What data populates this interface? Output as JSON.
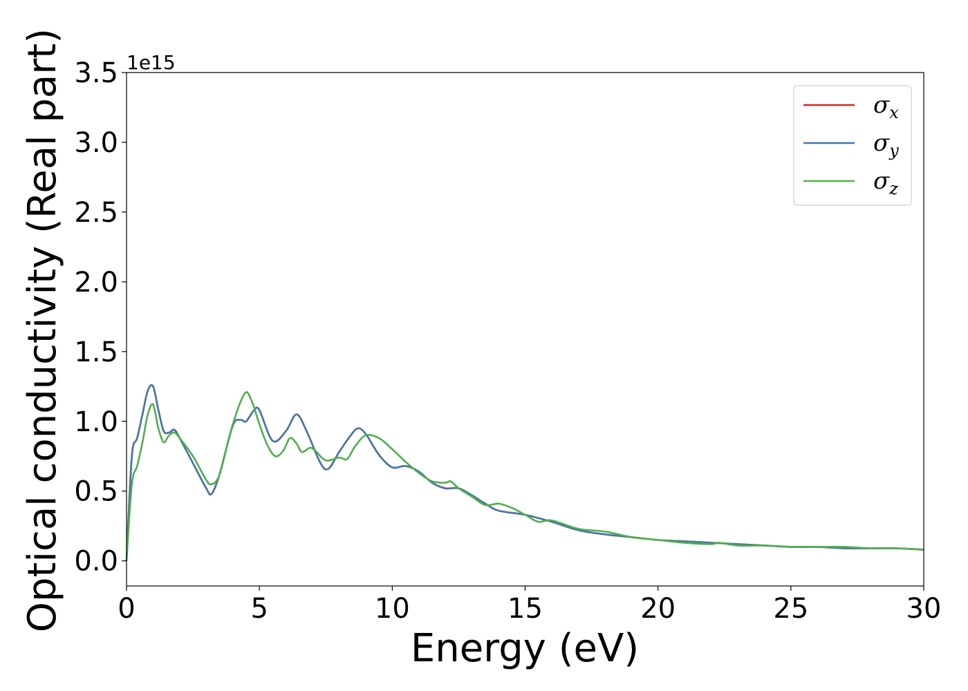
{
  "chart_data": {
    "type": "line",
    "title": "",
    "xlabel": "Energy (eV)",
    "ylabel": "Optical conductivity (Real part)",
    "y_offset_label": "1e15",
    "xlim": [
      0,
      30
    ],
    "ylim": [
      -0.18,
      3.5
    ],
    "xticks": [
      "0",
      "5",
      "10",
      "15",
      "20",
      "25",
      "30"
    ],
    "yticks": [
      "0.0",
      "0.5",
      "1.0",
      "1.5",
      "2.0",
      "2.5",
      "3.0",
      "3.5"
    ],
    "grid": false,
    "legend_position": "top-right",
    "colors": {
      "x": "#d62728",
      "y": "#4477aa",
      "z": "#4daf4a"
    },
    "legend": [
      {
        "base": "σ",
        "sub": "x"
      },
      {
        "base": "σ",
        "sub": "y"
      },
      {
        "base": "σ",
        "sub": "z"
      }
    ],
    "series": [
      {
        "name": "σx",
        "x": [
          0,
          0.2,
          0.4,
          0.6,
          0.8,
          1.0,
          1.2,
          1.4,
          1.6,
          1.8,
          2.0,
          2.5,
          3.0,
          3.2,
          3.5,
          4.0,
          4.3,
          4.5,
          4.8,
          5.0,
          5.5,
          6.0,
          6.4,
          6.8,
          7.3,
          7.6,
          8.0,
          8.4,
          8.7,
          9.0,
          9.5,
          10.0,
          10.5,
          11.0,
          11.5,
          12.0,
          12.5,
          13.0,
          13.5,
          14.0,
          15.0,
          16.0,
          17.0,
          18.0,
          19.0,
          20.0,
          21.0,
          22.0,
          23.0,
          24.0,
          25.0,
          26.0,
          27.0,
          28.0,
          29.0,
          30.0
        ],
        "y": [
          0.0,
          0.75,
          0.88,
          1.05,
          1.22,
          1.25,
          1.08,
          0.93,
          0.92,
          0.94,
          0.88,
          0.7,
          0.52,
          0.48,
          0.62,
          0.97,
          1.01,
          1.0,
          1.08,
          1.08,
          0.86,
          0.93,
          1.05,
          0.92,
          0.7,
          0.66,
          0.78,
          0.89,
          0.95,
          0.91,
          0.76,
          0.67,
          0.68,
          0.64,
          0.56,
          0.52,
          0.52,
          0.47,
          0.41,
          0.36,
          0.33,
          0.28,
          0.22,
          0.19,
          0.17,
          0.15,
          0.14,
          0.13,
          0.12,
          0.11,
          0.1,
          0.1,
          0.09,
          0.09,
          0.09,
          0.08
        ]
      },
      {
        "name": "σy",
        "x": [
          0,
          0.2,
          0.4,
          0.6,
          0.8,
          1.0,
          1.2,
          1.4,
          1.6,
          1.8,
          2.0,
          2.5,
          3.0,
          3.2,
          3.5,
          4.0,
          4.3,
          4.5,
          4.8,
          5.0,
          5.5,
          6.0,
          6.4,
          6.8,
          7.3,
          7.6,
          8.0,
          8.4,
          8.7,
          9.0,
          9.5,
          10.0,
          10.5,
          11.0,
          11.5,
          12.0,
          12.5,
          13.0,
          13.5,
          14.0,
          15.0,
          16.0,
          17.0,
          18.0,
          19.0,
          20.0,
          21.0,
          22.0,
          23.0,
          24.0,
          25.0,
          26.0,
          27.0,
          28.0,
          29.0,
          30.0
        ],
        "y": [
          0.0,
          0.75,
          0.88,
          1.05,
          1.22,
          1.25,
          1.08,
          0.93,
          0.92,
          0.94,
          0.88,
          0.7,
          0.52,
          0.48,
          0.62,
          0.97,
          1.01,
          1.0,
          1.08,
          1.08,
          0.86,
          0.93,
          1.05,
          0.92,
          0.7,
          0.66,
          0.78,
          0.89,
          0.95,
          0.91,
          0.76,
          0.67,
          0.68,
          0.64,
          0.56,
          0.52,
          0.52,
          0.47,
          0.41,
          0.36,
          0.33,
          0.28,
          0.22,
          0.19,
          0.17,
          0.15,
          0.14,
          0.13,
          0.12,
          0.11,
          0.1,
          0.1,
          0.09,
          0.09,
          0.09,
          0.08
        ]
      },
      {
        "name": "σz",
        "x": [
          0,
          0.2,
          0.4,
          0.6,
          0.8,
          1.0,
          1.2,
          1.4,
          1.6,
          1.8,
          2.0,
          2.5,
          3.0,
          3.2,
          3.5,
          4.0,
          4.45,
          4.7,
          5.0,
          5.3,
          5.6,
          5.9,
          6.15,
          6.4,
          6.6,
          6.9,
          7.1,
          7.5,
          8.0,
          8.3,
          8.6,
          9.0,
          9.5,
          10.0,
          10.5,
          11.0,
          11.5,
          12.0,
          12.2,
          12.5,
          13.0,
          13.5,
          14.0,
          14.5,
          15.0,
          15.5,
          16.0,
          17.0,
          18.0,
          19.0,
          20.0,
          21.0,
          22.0,
          22.3,
          23.0,
          24.0,
          25.0,
          26.0,
          27.0,
          28.0,
          29.0,
          30.0
        ],
        "y": [
          0.0,
          0.55,
          0.68,
          0.85,
          1.05,
          1.12,
          0.95,
          0.85,
          0.9,
          0.92,
          0.88,
          0.75,
          0.58,
          0.55,
          0.62,
          0.98,
          1.2,
          1.15,
          0.98,
          0.83,
          0.75,
          0.79,
          0.88,
          0.84,
          0.78,
          0.81,
          0.79,
          0.72,
          0.74,
          0.73,
          0.82,
          0.9,
          0.88,
          0.8,
          0.71,
          0.63,
          0.57,
          0.56,
          0.57,
          0.52,
          0.46,
          0.4,
          0.41,
          0.38,
          0.33,
          0.28,
          0.29,
          0.23,
          0.21,
          0.17,
          0.15,
          0.13,
          0.12,
          0.13,
          0.11,
          0.11,
          0.1,
          0.1,
          0.1,
          0.09,
          0.09,
          0.08
        ]
      }
    ]
  }
}
